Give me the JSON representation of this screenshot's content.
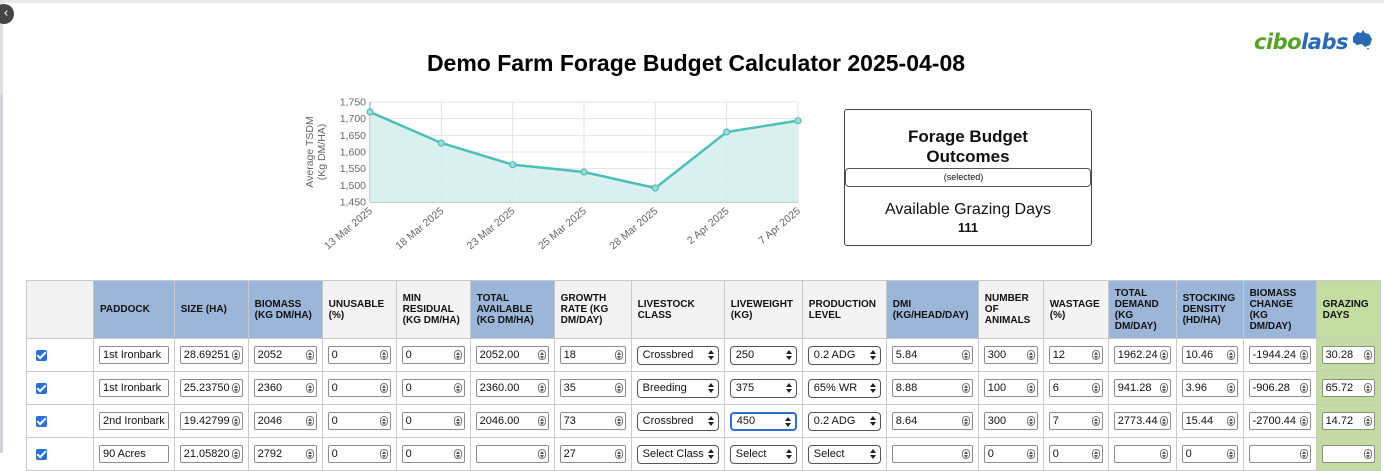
{
  "app": {
    "title": "Demo Farm Forage Budget Calculator 2025-04-08",
    "close_glyph": "‹",
    "logo": {
      "part1": "cibo",
      "part2": "labs",
      "icon": "australia-map-icon"
    }
  },
  "colors": {
    "accent_blue": "#9bb6d9",
    "accent_green": "#c3dca2",
    "line": "#4bbfba",
    "area": "#d6eeed",
    "checkbox": "#2a6fd6"
  },
  "chart_data": {
    "type": "area",
    "title": "",
    "xlabel": "",
    "ylabel_lines": [
      "Average TSDM",
      "(Kg DM/HA)"
    ],
    "x": [
      "13 Mar 2025",
      "18 Mar 2025",
      "23 Mar 2025",
      "25 Mar 2025",
      "28 Mar 2025",
      "2 Apr 2025",
      "7 Apr 2025"
    ],
    "values": [
      1720,
      1627,
      1562,
      1540,
      1492,
      1660,
      1694
    ],
    "yticks": [
      1450,
      1500,
      1550,
      1600,
      1650,
      1700,
      1750
    ],
    "ytick_labels": [
      "1,450",
      "1,500",
      "1,550",
      "1,600",
      "1,650",
      "1,700",
      "1,750"
    ],
    "ylim": [
      1450,
      1750
    ],
    "grid": true,
    "legend": "none"
  },
  "outcomes": {
    "heading": "Forage Budget Outcomes",
    "subheading": "(selected)",
    "label": "Available Grazing Days",
    "value": "111"
  },
  "table": {
    "headers": [
      {
        "label": "",
        "style": ""
      },
      {
        "label": "PADDOCK",
        "style": "blue"
      },
      {
        "label": "SIZE (HA)",
        "style": "blue"
      },
      {
        "label": "BIOMASS (KG DM/HA)",
        "style": "blue"
      },
      {
        "label": "UNUSABLE (%)",
        "style": ""
      },
      {
        "label": "MIN RESIDUAL (KG DM/HA)",
        "style": ""
      },
      {
        "label": "TOTAL AVAILABLE (KG DM/HA)",
        "style": "blue"
      },
      {
        "label": "GROWTH RATE (KG DM/DAY)",
        "style": ""
      },
      {
        "label": "LIVESTOCK CLASS",
        "style": ""
      },
      {
        "label": "LIVEWEIGHT (KG)",
        "style": ""
      },
      {
        "label": "PRODUCTION LEVEL",
        "style": ""
      },
      {
        "label": "DMI (KG/HEAD/DAY)",
        "style": "blue"
      },
      {
        "label": "NUMBER OF ANIMALS",
        "style": ""
      },
      {
        "label": "WASTAGE (%)",
        "style": ""
      },
      {
        "label": "TOTAL DEMAND (KG DM/DAY)",
        "style": "blue"
      },
      {
        "label": "STOCKING DENSITY (HD/HA)",
        "style": "blue"
      },
      {
        "label": "BIOMASS CHANGE (KG DM/DAY)",
        "style": "blue"
      },
      {
        "label": "GRAZING DAYS",
        "style": "green"
      }
    ],
    "rows": [
      {
        "checked": true,
        "paddock": "1st Ironbark",
        "size": "28.69251",
        "biomass": "2052",
        "unusable": "0",
        "min_residual": "0",
        "total_available": "2052.00",
        "growth_rate": "18",
        "livestock_class": "Crossbred",
        "liveweight": "250",
        "production_level": "0.2 ADG",
        "dmi": "5.84",
        "animals": "300",
        "wastage": "12",
        "total_demand": "1962.24",
        "stocking_density": "10.46",
        "biomass_change": "-1944.24",
        "grazing_days": "30.28"
      },
      {
        "checked": true,
        "paddock": "1st Ironbark",
        "size": "25.23750",
        "biomass": "2360",
        "unusable": "0",
        "min_residual": "0",
        "total_available": "2360.00",
        "growth_rate": "35",
        "livestock_class": "Breeding",
        "liveweight": "375",
        "production_level": "65% WR",
        "dmi": "8.88",
        "animals": "100",
        "wastage": "6",
        "total_demand": "941.28",
        "stocking_density": "3.96",
        "biomass_change": "-906.28",
        "grazing_days": "65.72"
      },
      {
        "checked": true,
        "paddock": "2nd Ironbark",
        "size": "19.42799",
        "biomass": "2046",
        "unusable": "0",
        "min_residual": "0",
        "total_available": "2046.00",
        "growth_rate": "73",
        "livestock_class": "Crossbred",
        "liveweight": "450",
        "production_level": "0.2 ADG",
        "dmi": "8.64",
        "animals": "300",
        "wastage": "7",
        "total_demand": "2773.44",
        "stocking_density": "15.44",
        "biomass_change": "-2700.44",
        "grazing_days": "14.72"
      },
      {
        "checked": true,
        "paddock": "90 Acres",
        "size": "21.05820",
        "biomass": "2792",
        "unusable": "0",
        "min_residual": "0",
        "total_available": "",
        "growth_rate": "27",
        "livestock_class": "Select Class",
        "liveweight": "Select",
        "production_level": "Select",
        "dmi": "",
        "animals": "0",
        "wastage": "0",
        "total_demand": "",
        "stocking_density": "0",
        "biomass_change": "",
        "grazing_days": ""
      }
    ]
  }
}
